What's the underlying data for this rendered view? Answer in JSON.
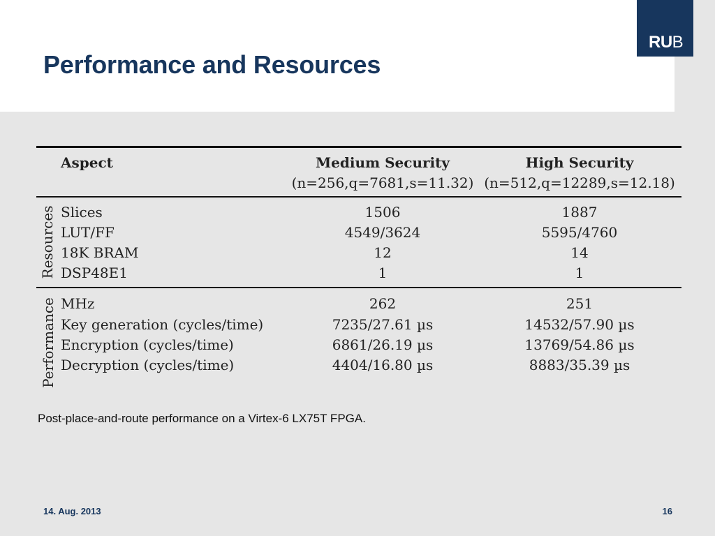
{
  "slide": {
    "title": "Performance and Resources",
    "logo_text_bold": "RU",
    "logo_text_regular": "B",
    "caption": "Post-place-and-route performance on a Virtex-6 LX75T FPGA.",
    "date": "14. Aug. 2013",
    "page_number": "16"
  },
  "table": {
    "headers": {
      "aspect": "Aspect",
      "medium": "Medium Security",
      "medium_params": "(n=256,q=7681,s=11.32)",
      "high": "High Security",
      "high_params": "(n=512,q=12289,s=12.18)"
    },
    "groups": [
      {
        "label": "Resources",
        "rows": [
          {
            "aspect": "Slices",
            "medium": "1506",
            "high": "1887"
          },
          {
            "aspect": "LUT/FF",
            "medium": "4549/3624",
            "high": "5595/4760"
          },
          {
            "aspect": "18K BRAM",
            "medium": "12",
            "high": "14"
          },
          {
            "aspect": "DSP48E1",
            "medium": "1",
            "high": "1"
          }
        ]
      },
      {
        "label": "Performance",
        "rows": [
          {
            "aspect": "MHz",
            "medium": "262",
            "high": "251"
          },
          {
            "aspect": "Key generation (cycles/time)",
            "medium": "7235/27.61 µs",
            "high": "14532/57.90 µs"
          },
          {
            "aspect": "Encryption (cycles/time)",
            "medium": "6861/26.19 µs",
            "high": "13769/54.86 µs"
          },
          {
            "aspect": "Decryption (cycles/time)",
            "medium": "4404/16.80 µs",
            "high": "8883/35.39 µs"
          }
        ]
      }
    ]
  },
  "colors": {
    "brand": "#17365d",
    "background": "#e6e6e6"
  }
}
